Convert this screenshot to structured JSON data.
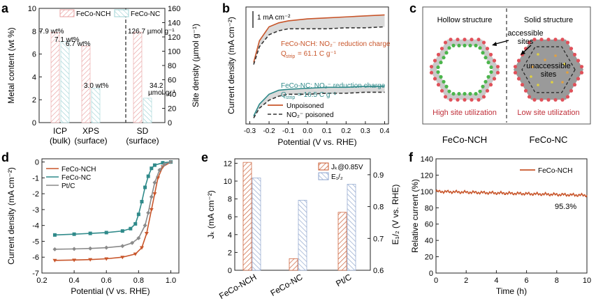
{
  "panel_letters": {
    "a": "a",
    "b": "b",
    "c": "c",
    "d": "d",
    "e": "e",
    "f": "f"
  },
  "colors": {
    "orange": "#c8552a",
    "teal": "#2f8a8a",
    "gray": "#8a8a8a",
    "pink": "#e9a0a0",
    "lightblue": "#9fd3d6",
    "blue": "#8aa2cc"
  },
  "chart_data": [
    {
      "panel": "a",
      "type": "bar",
      "categories": [
        "ICP\n(bulk)",
        "XPS\n(surface)",
        "SD\n(surface)"
      ],
      "xtick_lines": [
        [
          "ICP",
          "(bulk)"
        ],
        [
          "XPS",
          "(surface)"
        ],
        [
          "SD",
          "(surface)"
        ]
      ],
      "series": [
        {
          "name": "FeCo-NCH",
          "values": [
            7.9,
            6.7,
            126.7
          ],
          "labels": [
            "7.9 wt%",
            "6.7 wt%",
            "126.7 µmol g⁻¹"
          ]
        },
        {
          "name": "FeCo-NC",
          "values": [
            7.1,
            3.0,
            34.2
          ],
          "labels": [
            "7.1 wt%",
            "3.0 wt%",
            "34.2 µmol g⁻¹"
          ]
        }
      ],
      "ylabel": "Metal content (wt %)",
      "ylabel2": "Site density (µmol g⁻¹)",
      "ylim": [
        0,
        10
      ],
      "y2lim": [
        0,
        160
      ],
      "yticks": [
        0,
        2,
        4,
        6,
        8,
        10
      ],
      "y2ticks": [
        0,
        20,
        40,
        60,
        80,
        100,
        120,
        140,
        160
      ],
      "grid": false,
      "legend": "top"
    },
    {
      "panel": "b",
      "type": "line",
      "xlabel": "Potential (V vs. RHE)",
      "ylabel": "Current density (mA cm⁻²)",
      "xlim": [
        -0.3,
        0.4
      ],
      "xticks": [
        "-0.3",
        "-0.2",
        "-0.1",
        "0.0",
        "0.1",
        "0.2",
        "0.3",
        "0.4"
      ],
      "scale_bar": "1 mA cm⁻²",
      "series": [
        {
          "name": "FeCo-NCH Unpoisoned",
          "x": [
            -0.28,
            -0.25,
            -0.2,
            -0.15,
            -0.1,
            0,
            0.1,
            0.2,
            0.3,
            0.4
          ],
          "y": [
            -2.6,
            -1.5,
            -0.8,
            -0.6,
            -0.5,
            -0.4,
            -0.35,
            -0.3,
            -0.25,
            -0.2
          ]
        },
        {
          "name": "FeCo-NCH NO2- poisoned",
          "x": [
            -0.28,
            -0.25,
            -0.2,
            -0.15,
            -0.1,
            0,
            0.1,
            0.2,
            0.3,
            0.4
          ],
          "y": [
            -2.7,
            -1.8,
            -1.2,
            -1.0,
            -0.9,
            -0.9,
            -0.9,
            -0.85,
            -0.85,
            -0.8
          ]
        },
        {
          "name": "FeCo-NC Unpoisoned",
          "x": [
            -0.28,
            -0.25,
            -0.2,
            -0.15,
            -0.1,
            0,
            0.1,
            0.2,
            0.3,
            0.4
          ],
          "y": [
            -5.3,
            -4.7,
            -4.2,
            -4.0,
            -3.95,
            -3.9,
            -3.85,
            -3.85,
            -3.8,
            -3.8
          ]
        },
        {
          "name": "FeCo-NC NO2- poisoned",
          "x": [
            -0.28,
            -0.25,
            -0.2,
            -0.15,
            -0.1,
            0,
            0.1,
            0.2,
            0.3,
            0.4
          ],
          "y": [
            -5.4,
            -4.9,
            -4.5,
            -4.3,
            -4.2,
            -4.2,
            -4.15,
            -4.15,
            -4.1,
            -4.1
          ]
        }
      ],
      "annotations": [
        {
          "text": "FeCo-NCH: NO₂⁻ reduction charge",
          "sub": "Q",
          "subscript": "strip",
          "rest": " = 61.1 C g⁻¹",
          "color": "orange"
        },
        {
          "text": "FeCo-NC: NO₂⁻ reduction charge",
          "sub": "Q",
          "subscript": "strip",
          "rest": " = 16.5 C g⁻¹",
          "color": "teal"
        }
      ],
      "legend": [
        "Unpoisoned",
        "NO₂⁻ poisoned"
      ]
    },
    {
      "panel": "d",
      "type": "line",
      "xlabel": "Potential (V vs. RHE)",
      "ylabel": "Current density (mA cm⁻²)",
      "xlim": [
        0.2,
        1.05
      ],
      "ylim": [
        -7,
        0.2
      ],
      "xticks": [
        0.2,
        0.4,
        0.6,
        0.8,
        1.0
      ],
      "yticks": [
        0,
        -1,
        -2,
        -3,
        -4,
        -5,
        -6,
        -7
      ],
      "series": [
        {
          "name": "FeCo-NCH",
          "x": [
            0.28,
            0.4,
            0.5,
            0.6,
            0.7,
            0.78,
            0.82,
            0.85,
            0.88,
            0.9,
            0.92,
            0.95,
            1.0
          ],
          "y": [
            -6.2,
            -6.18,
            -6.15,
            -6.1,
            -6.0,
            -5.8,
            -5.4,
            -4.5,
            -3.0,
            -2.0,
            -1.0,
            -0.3,
            0
          ]
        },
        {
          "name": "FeCo-NC",
          "x": [
            0.28,
            0.4,
            0.5,
            0.6,
            0.7,
            0.75,
            0.78,
            0.8,
            0.82,
            0.84,
            0.86,
            0.88,
            0.9,
            0.95,
            1.0
          ],
          "y": [
            -4.6,
            -4.55,
            -4.5,
            -4.45,
            -4.35,
            -4.2,
            -3.9,
            -3.3,
            -2.5,
            -1.6,
            -0.9,
            -0.4,
            -0.2,
            -0.05,
            0
          ]
        },
        {
          "name": "Pt/C",
          "x": [
            0.28,
            0.4,
            0.5,
            0.6,
            0.7,
            0.76,
            0.8,
            0.84,
            0.86,
            0.88,
            0.9,
            0.93,
            0.96,
            1.0
          ],
          "y": [
            -5.5,
            -5.48,
            -5.45,
            -5.4,
            -5.3,
            -5.1,
            -4.8,
            -4.0,
            -3.2,
            -2.2,
            -1.3,
            -0.5,
            -0.15,
            0
          ]
        }
      ],
      "legend": "top-left"
    },
    {
      "panel": "e",
      "type": "bar",
      "categories": [
        "FeCo-NCH",
        "FeCo-NC",
        "Pt/C"
      ],
      "ylabel": "Jₖ (mA cm⁻²)",
      "ylabel2": "E₁/₂ (V vs. RHE)",
      "ylim": [
        0,
        12.5
      ],
      "y2lim": [
        0.6,
        0.95
      ],
      "yticks": [
        0,
        2,
        4,
        6,
        8,
        10,
        12
      ],
      "y2ticks": [
        "0.6",
        "0.7",
        "0.8",
        "0.9"
      ],
      "series": [
        {
          "name": "Jₖ@0.85V",
          "values": [
            12.1,
            1.3,
            6.5
          ]
        },
        {
          "name": "E₁/₂",
          "values": [
            0.89,
            0.82,
            0.87
          ]
        }
      ],
      "legend": "top-right"
    },
    {
      "panel": "f",
      "type": "line",
      "xlabel": "Time (h)",
      "ylabel": "Relative current (%)",
      "xlim": [
        0,
        10
      ],
      "ylim": [
        0,
        140
      ],
      "xticks": [
        0,
        2,
        4,
        6,
        8,
        10
      ],
      "yticks": [
        0,
        20,
        40,
        60,
        80,
        100,
        120,
        140
      ],
      "series": [
        {
          "name": "FeCo-NCH",
          "x": [
            0,
            1,
            2,
            3,
            4,
            5,
            6,
            7,
            8,
            9,
            10
          ],
          "y": [
            100,
            99,
            98.5,
            98,
            97.5,
            97,
            96.5,
            96,
            95.8,
            95.5,
            95.3
          ]
        }
      ],
      "annotation": "95.3%",
      "legend": "top-right"
    }
  ],
  "panel_c": {
    "left_title": "Hollow structure",
    "right_title": "Solid structure",
    "accessible": [
      "accessible",
      "sites"
    ],
    "inaccessible": [
      "unaccessible",
      "sites"
    ],
    "left_caption": "High site utilization",
    "right_caption": "Low site utilization",
    "left_name": "FeCo-NCH",
    "right_name": "FeCo-NC"
  }
}
